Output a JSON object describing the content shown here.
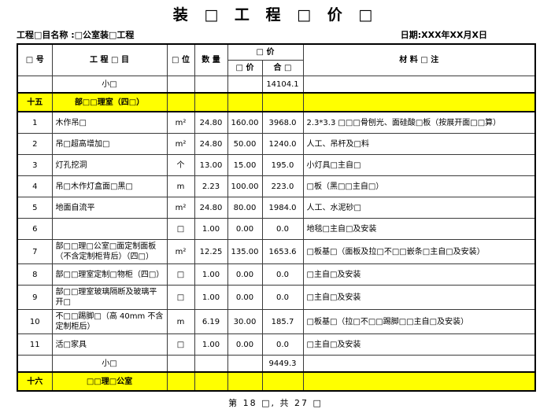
{
  "title": "装 □ 工 程 □ 价 □",
  "meta": {
    "project_label": "工程□目名称 :□公室装□工程",
    "date_label": "日期:XXX年XX月X日"
  },
  "table": {
    "headers": {
      "no": "□ 号",
      "item": "工  程  □  目",
      "unit": "□ 位",
      "qty": "数 量",
      "price_group": "□ 价",
      "unit_price": "□ 价",
      "total": "合 □",
      "remark": "材 料 □ 注"
    },
    "rows": [
      {
        "type": "subtotal",
        "no": "",
        "name": "小□",
        "unit": "",
        "qty": "",
        "price": "",
        "total": "14104.1",
        "remark": ""
      },
      {
        "type": "section",
        "no": "十五",
        "name": "部□□理室（四□）",
        "unit": "",
        "qty": "",
        "price": "",
        "total": "",
        "remark": ""
      },
      {
        "type": "item",
        "no": "1",
        "name": "木作吊□",
        "unit": "m²",
        "qty": "24.80",
        "price": "160.00",
        "total": "3968.0",
        "remark": "2.3*3.3 □□□骨刨光、面硅酸□板（按展开面□□算）"
      },
      {
        "type": "item",
        "no": "2",
        "name": "吊□超高增加□",
        "unit": "m²",
        "qty": "24.80",
        "price": "50.00",
        "total": "1240.0",
        "remark": "人工、吊杆及□料"
      },
      {
        "type": "item",
        "no": "3",
        "name": "灯孔挖洞",
        "unit": "个",
        "qty": "13.00",
        "price": "15.00",
        "total": "195.0",
        "remark": "小灯具□主自□"
      },
      {
        "type": "item",
        "no": "4",
        "name": "吊□木作灯盒面□黑□",
        "unit": "m",
        "qty": "2.23",
        "price": "100.00",
        "total": "223.0",
        "remark": "□板（黑□□主自□）"
      },
      {
        "type": "item",
        "no": "5",
        "name": "地面自流平",
        "unit": "m²",
        "qty": "24.80",
        "price": "80.00",
        "total": "1984.0",
        "remark": "人工、水泥砂□"
      },
      {
        "type": "item",
        "no": "6",
        "name": "",
        "unit": "□",
        "qty": "1.00",
        "price": "0.00",
        "total": "0.0",
        "remark": "地毯□主自□及安装"
      },
      {
        "type": "item",
        "no": "7",
        "name": "部□□理□公室□面定制面板（不含定制柜背后）（四□）",
        "unit": "m²",
        "qty": "12.25",
        "price": "135.00",
        "total": "1653.6",
        "remark": "□板基□（面板及拉□不□□嵌条□主自□及安装）"
      },
      {
        "type": "item",
        "no": "8",
        "name": "部□□理室定制□物柜（四□）",
        "unit": "□",
        "qty": "1.00",
        "price": "0.00",
        "total": "0.0",
        "remark": "□主自□及安装"
      },
      {
        "type": "item",
        "no": "9",
        "name": "部□□理室玻璃隔断及玻璃平开□",
        "unit": "□",
        "qty": "1.00",
        "price": "0.00",
        "total": "0.0",
        "remark": "□主自□及安装"
      },
      {
        "type": "item",
        "no": "10",
        "name": "不□□踢脚□（高 40mm 不含定制柜后）",
        "unit": "m",
        "qty": "6.19",
        "price": "30.00",
        "total": "185.7",
        "remark": "□板基□（拉□不□□踢脚□□主自□及安装）"
      },
      {
        "type": "item",
        "no": "11",
        "name": "活□家具",
        "unit": "□",
        "qty": "1.00",
        "price": "0.00",
        "total": "0.0",
        "remark": "□主自□及安装"
      },
      {
        "type": "subtotal",
        "no": "",
        "name": "小□",
        "unit": "",
        "qty": "",
        "price": "",
        "total": "9449.3",
        "remark": ""
      },
      {
        "type": "section",
        "no": "十六",
        "name": "□□理□公室",
        "unit": "",
        "qty": "",
        "price": "",
        "total": "",
        "remark": ""
      }
    ]
  },
  "footer": "第 18 □, 共 27 □",
  "colors": {
    "section_highlight": "#ffff00",
    "border": "#3a3a3a",
    "text": "#000000"
  }
}
